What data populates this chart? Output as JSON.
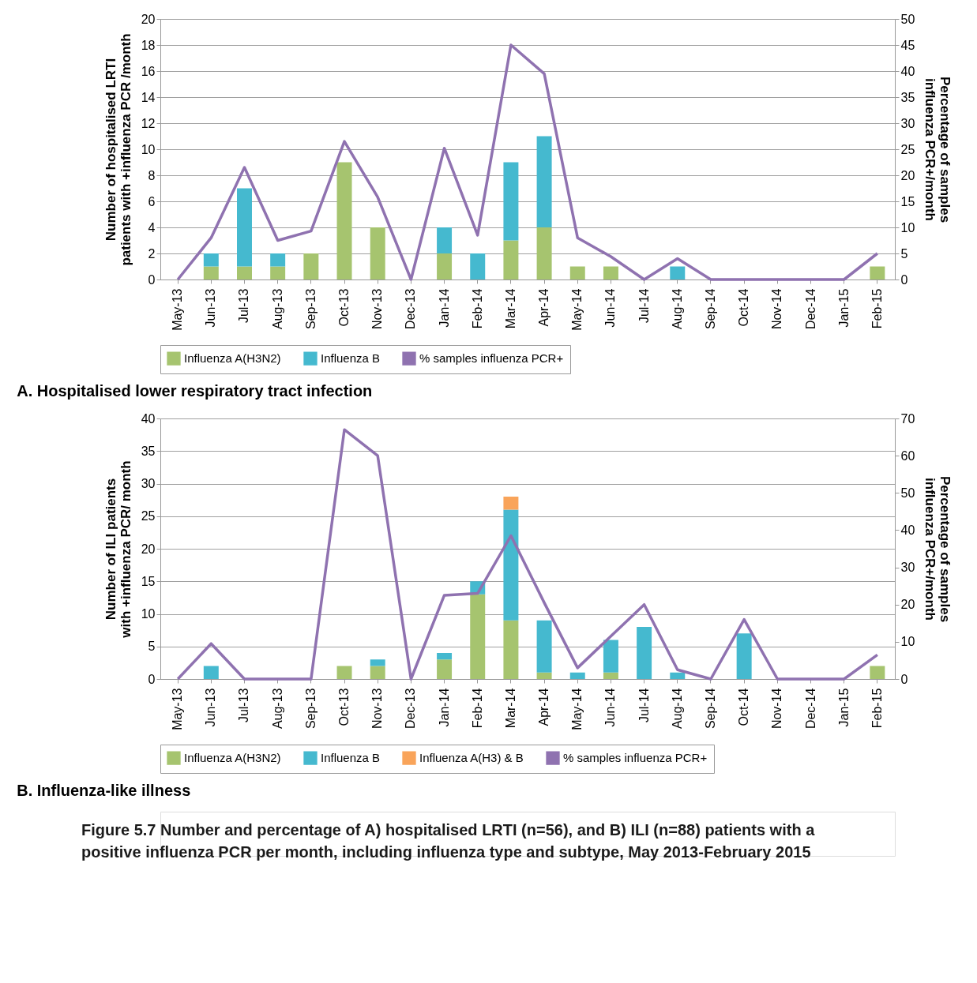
{
  "chart_data": [
    {
      "type": "bar",
      "stacked": true,
      "title": "A. Hospitalised lower respiratory tract infection",
      "ylabel": "Number of hospitalised LRTI patients with +influenza PCR /month",
      "y2label": "Percentage of samples influenza PCR+/month",
      "categories": [
        "May-13",
        "Jun-13",
        "Jul-13",
        "Aug-13",
        "Sep-13",
        "Oct-13",
        "Nov-13",
        "Dec-13",
        "Jan-14",
        "Feb-14",
        "Mar-14",
        "Apr-14",
        "May-14",
        "Jun-14",
        "Jul-14",
        "Aug-14",
        "Sep-14",
        "Oct-14",
        "Nov-14",
        "Dec-14",
        "Jan-15",
        "Feb-15"
      ],
      "series": [
        {
          "name": "Influenza A(H3N2)",
          "color": "#a6c46f",
          "values": [
            0,
            1,
            1,
            1,
            2,
            9,
            4,
            0,
            2,
            0,
            3,
            4,
            1,
            1,
            0,
            0,
            0,
            0,
            0,
            0,
            0,
            1
          ]
        },
        {
          "name": "Influenza B",
          "color": "#45b9cf",
          "values": [
            0,
            1,
            6,
            1,
            0,
            0,
            0,
            0,
            2,
            2,
            6,
            7,
            0,
            0,
            0,
            1,
            0,
            0,
            0,
            0,
            0,
            0
          ]
        },
        {
          "name": "% samples influenza PCR+",
          "color": "#8f72b0",
          "type": "line",
          "axis": "y2",
          "values": [
            0,
            8,
            21.5,
            7.5,
            9.3,
            26.5,
            15.8,
            0,
            25.2,
            8.5,
            45,
            39.5,
            8,
            4.4,
            0,
            4,
            0,
            0,
            0,
            0,
            0,
            5
          ]
        }
      ],
      "ylim": [
        0,
        20
      ],
      "yticks": [
        0,
        2,
        4,
        6,
        8,
        10,
        12,
        14,
        16,
        18,
        20
      ],
      "y2lim": [
        0,
        50
      ],
      "y2ticks": [
        0,
        5,
        10,
        15,
        20,
        25,
        30,
        35,
        40,
        45,
        50
      ],
      "grid": "y",
      "legend": "bottom"
    },
    {
      "type": "bar",
      "stacked": true,
      "title": "B. Influenza-like illness",
      "ylabel": "Number of ILI patients with +influenza PCR/ month",
      "y2label": "Percentage of samples influenza PCR+/month",
      "categories": [
        "May-13",
        "Jun-13",
        "Jul-13",
        "Aug-13",
        "Sep-13",
        "Oct-13",
        "Nov-13",
        "Dec-13",
        "Jan-14",
        "Feb-14",
        "Mar-14",
        "Apr-14",
        "May-14",
        "Jun-14",
        "Jul-14",
        "Aug-14",
        "Sep-14",
        "Oct-14",
        "Nov-14",
        "Dec-14",
        "Jan-15",
        "Feb-15"
      ],
      "series": [
        {
          "name": "Influenza A(H3N2)",
          "color": "#a6c46f",
          "values": [
            0,
            0,
            0,
            0,
            0,
            2,
            2,
            0,
            3,
            13,
            9,
            1,
            0,
            1,
            0,
            0,
            0,
            0,
            0,
            0,
            0,
            2
          ]
        },
        {
          "name": "Influenza B",
          "color": "#45b9cf",
          "values": [
            0,
            2,
            0,
            0,
            0,
            0,
            1,
            0,
            1,
            2,
            17,
            8,
            1,
            5,
            8,
            1,
            0,
            7,
            0,
            0,
            0,
            0
          ]
        },
        {
          "name": "Influenza A(H3) & B",
          "color": "#f9a45a",
          "values": [
            0,
            0,
            0,
            0,
            0,
            0,
            0,
            0,
            0,
            0,
            2,
            0,
            0,
            0,
            0,
            0,
            0,
            0,
            0,
            0,
            0,
            0
          ]
        },
        {
          "name": "% samples influenza PCR+",
          "color": "#8f72b0",
          "type": "line",
          "axis": "y2",
          "values": [
            0,
            9.5,
            0,
            0,
            0,
            67,
            60,
            0,
            22.5,
            23,
            38.5,
            20.5,
            3,
            11.5,
            20,
            2.5,
            0,
            16,
            0,
            0,
            0,
            6.5
          ]
        }
      ],
      "ylim": [
        0,
        40
      ],
      "yticks": [
        0,
        5,
        10,
        15,
        20,
        25,
        30,
        35,
        40
      ],
      "y2lim": [
        0,
        70
      ],
      "y2ticks": [
        0,
        10,
        20,
        30,
        40,
        50,
        60,
        70
      ],
      "grid": "y",
      "legend": "bottom",
      "annotations": [
        "Figure 5.7  Number and percentage of A) hospitalised LRTI (n=56), and B) ILI (n=88) patients with a positive influenza PCR per month, including influenza type and subtype, May 2013-February 2015"
      ]
    }
  ]
}
